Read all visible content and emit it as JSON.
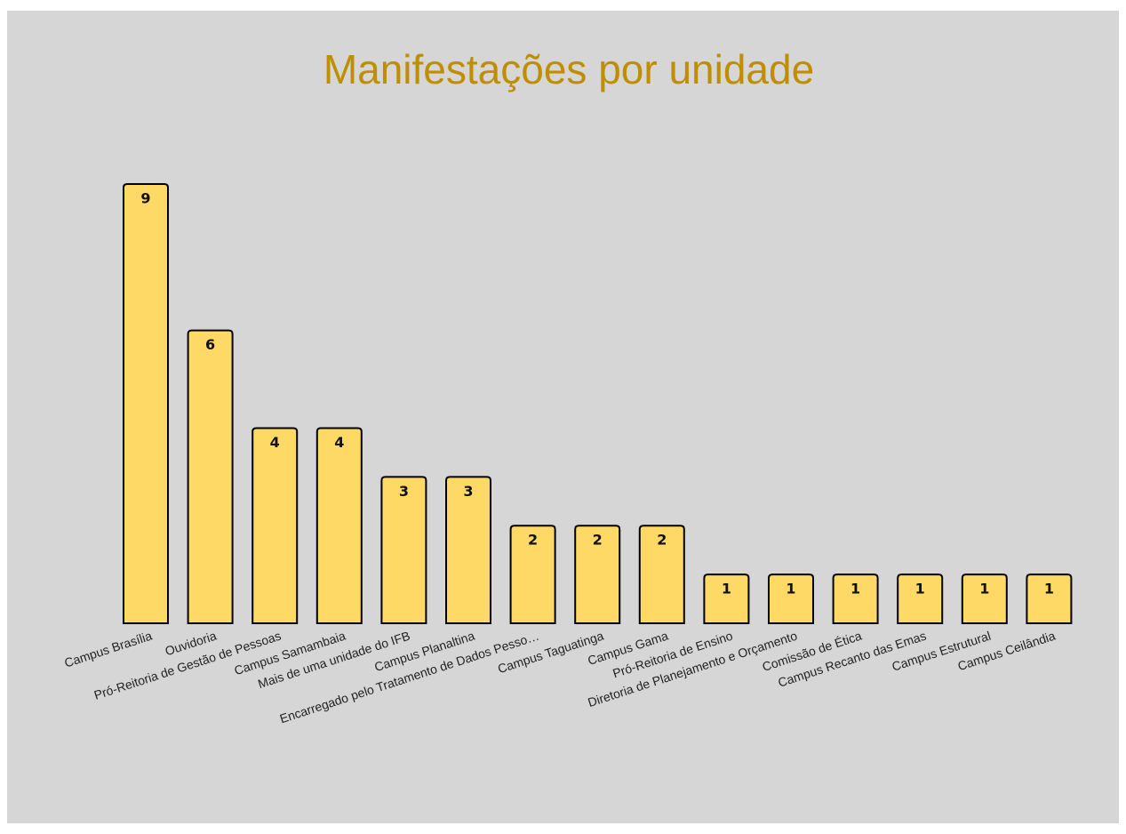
{
  "chart_data": {
    "type": "bar",
    "title": "Manifestações por unidade",
    "categories": [
      "Campus Brasília",
      "Ouvidoria",
      "Pró-Reitoria de Gestão de Pessoas",
      "Campus Samambaia",
      "Mais de uma unidade do IFB",
      "Campus Planaltina",
      "Encarregado pelo Tratamento de Dados Pesso…",
      "Campus Taguatinga",
      "Campus Gama",
      "Pró-Reitoria de Ensino",
      "Diretoria de Planejamento e Orçamento",
      "Comissão de Ética",
      "Campus Recanto das Emas",
      "Campus Estrutural",
      "Campus Ceilândia"
    ],
    "values": [
      9,
      6,
      4,
      4,
      3,
      3,
      2,
      2,
      2,
      1,
      1,
      1,
      1,
      1,
      1
    ],
    "color": "#ffd966"
  }
}
